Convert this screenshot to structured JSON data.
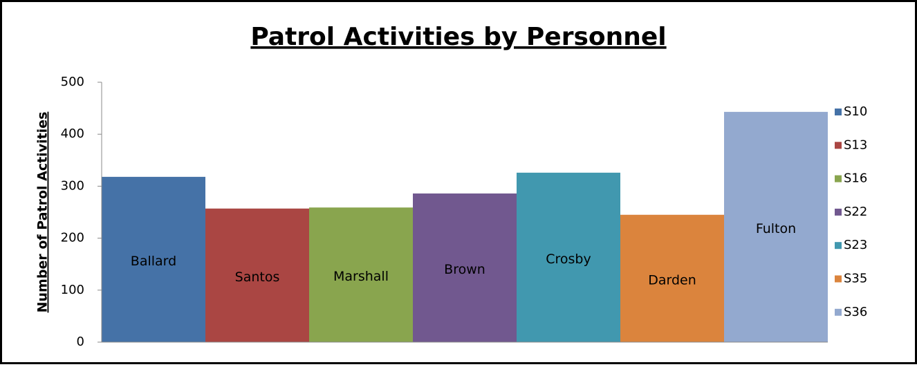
{
  "chart_data": {
    "type": "bar",
    "title": "Patrol Activities by Personnel",
    "y_label": "Number of Patrol Activities",
    "ylim": [
      0,
      500
    ],
    "yticks": [
      0,
      100,
      200,
      300,
      400,
      500
    ],
    "legend": "right",
    "series": [
      {
        "name": "S10",
        "color": "#4572a7",
        "values": [
          318
        ],
        "labels": [
          "Ballard"
        ]
      },
      {
        "name": "S13",
        "color": "#aa4643",
        "values": [
          257
        ],
        "labels": [
          "Santos"
        ]
      },
      {
        "name": "S16",
        "color": "#89a54e",
        "values": [
          259
        ],
        "labels": [
          "Marshall"
        ]
      },
      {
        "name": "S22",
        "color": "#71588f",
        "values": [
          286
        ],
        "labels": [
          "Brown"
        ]
      },
      {
        "name": "S23",
        "color": "#4198af",
        "values": [
          326
        ],
        "labels": [
          "Crosby"
        ]
      },
      {
        "name": "S35",
        "color": "#db843d",
        "values": [
          245
        ],
        "labels": [
          "Darden"
        ]
      },
      {
        "name": "S36",
        "color": "#93a9cf",
        "values": [
          443
        ],
        "labels": [
          "Fulton"
        ]
      }
    ]
  }
}
